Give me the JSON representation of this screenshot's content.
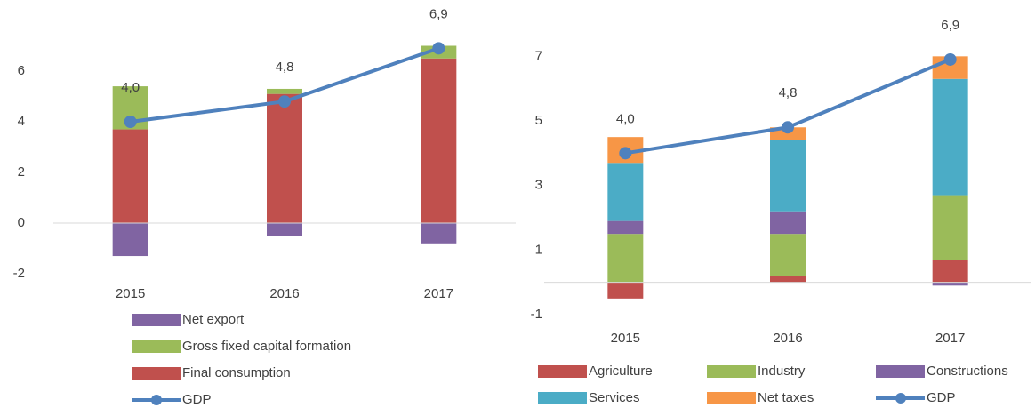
{
  "chart_data": [
    {
      "type": "stacked_bar_line",
      "categories": [
        "2015",
        "2016",
        "2017"
      ],
      "ylim": [
        -2,
        8
      ],
      "yticks": [
        -2,
        0,
        2,
        4,
        6
      ],
      "legend_reversed": true,
      "series": [
        {
          "name": "Final consumption",
          "color": "#c0504d",
          "values": [
            3.7,
            5.1,
            6.5
          ]
        },
        {
          "name": "Gross fixed capital formation",
          "color": "#9bbb59",
          "values": [
            1.7,
            0.2,
            0.5
          ]
        },
        {
          "name": "Net export",
          "color": "#8064a2",
          "values": [
            -1.3,
            -0.5,
            -0.8
          ]
        }
      ],
      "line": {
        "name": "GDP",
        "color": "#4f81bd",
        "values": [
          4.0,
          4.8,
          6.9
        ],
        "value_labels": [
          "4,0",
          "4,8",
          "6,9"
        ]
      }
    },
    {
      "type": "stacked_bar_line",
      "categories": [
        "2015",
        "2016",
        "2017"
      ],
      "ylim": [
        -1,
        8
      ],
      "yticks": [
        -1,
        1,
        3,
        5,
        7
      ],
      "legend_reversed": false,
      "series": [
        {
          "name": "Agriculture",
          "color": "#c0504d",
          "values": [
            -0.5,
            0.2,
            0.7
          ]
        },
        {
          "name": "Industry",
          "color": "#9bbb59",
          "values": [
            1.5,
            1.3,
            2.0
          ]
        },
        {
          "name": "Constructions",
          "color": "#8064a2",
          "values": [
            0.4,
            0.7,
            -0.1
          ]
        },
        {
          "name": "Services",
          "color": "#4bacc6",
          "values": [
            1.8,
            2.2,
            3.6
          ]
        },
        {
          "name": "Net taxes",
          "color": "#f79646",
          "values": [
            0.8,
            0.4,
            0.7
          ]
        }
      ],
      "line": {
        "name": "GDP",
        "color": "#4f81bd",
        "values": [
          4.0,
          4.8,
          6.9
        ],
        "value_labels": [
          "4,0",
          "4,8",
          "6,9"
        ]
      }
    }
  ]
}
